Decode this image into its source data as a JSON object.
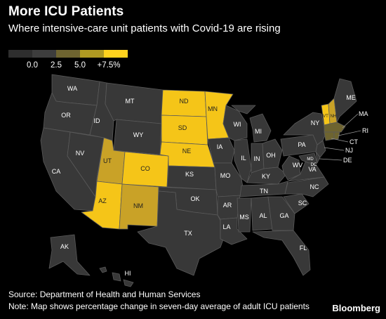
{
  "header": {
    "title": "More ICU Patients",
    "subtitle": "Where intensive-care unit patients with Covid-19 are rising"
  },
  "legend": {
    "labels": [
      "0.0",
      "2.5",
      "5.0",
      "+7.5%"
    ],
    "colors": [
      "#2e2e2e",
      "#6e6430",
      "#b09a22",
      "#f8c81a",
      "#ffd21e"
    ]
  },
  "colors": {
    "background": "#000000",
    "dark_state": "#383838",
    "border": "#5a5a5a",
    "highlight": "#f5c518",
    "mid": "#c9a227",
    "low": "#6e6430"
  },
  "states": {
    "WA": "WA",
    "OR": "OR",
    "CA": "CA",
    "NV": "NV",
    "ID": "ID",
    "MT": "MT",
    "WY": "WY",
    "UT": "UT",
    "CO": "CO",
    "AZ": "AZ",
    "NM": "NM",
    "ND": "ND",
    "SD": "SD",
    "NE": "NE",
    "KS": "KS",
    "OK": "OK",
    "TX": "TX",
    "MN": "MN",
    "IA": "IA",
    "MO": "MO",
    "AR": "AR",
    "LA": "LA",
    "WI": "WI",
    "IL": "IL",
    "MI": "MI",
    "IN": "IN",
    "OH": "OH",
    "KY": "KY",
    "TN": "TN",
    "MS": "MS",
    "AL": "AL",
    "GA": "GA",
    "FL": "FL",
    "SC": "SC",
    "NC": "NC",
    "VA": "VA",
    "WV": "WV",
    "PA": "PA",
    "NY": "NY",
    "VT": "VT",
    "NH": "NH",
    "ME": "ME",
    "MA": "MA",
    "RI": "RI",
    "CT": "CT",
    "NJ": "NJ",
    "DE": "DE",
    "MD": "MD",
    "DC": "DC",
    "AK": "AK",
    "HI": "HI"
  },
  "footer": {
    "source": "Source: Department of Health and Human Services",
    "note": "Note: Map shows percentage change in seven-day average of adult ICU patients",
    "brand": "Bloomberg"
  }
}
